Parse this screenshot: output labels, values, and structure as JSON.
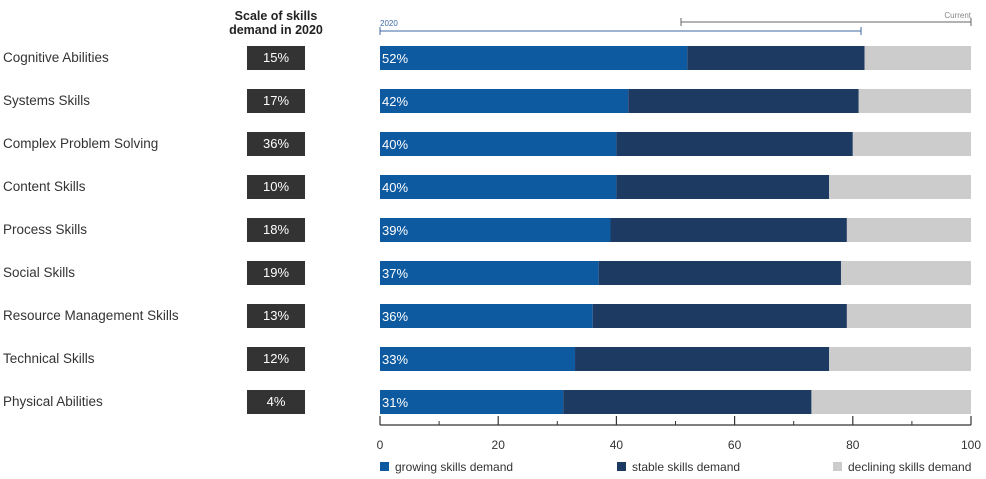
{
  "column_header": "Scale of skills demand in 2020",
  "range_labels": {
    "start": "2020",
    "end": "Current"
  },
  "colors": {
    "growing": "#0e5aa0",
    "stable": "#1d3a63",
    "declining": "#cccccc",
    "box": "#333333"
  },
  "chart_data": {
    "type": "bar",
    "orientation": "horizontal",
    "stacked": true,
    "categories": [
      "Cognitive Abilities",
      "Systems Skills",
      "Complex Problem Solving",
      "Content Skills",
      "Process Skills",
      "Social Skills",
      "Resource Management Skills",
      "Technical Skills",
      "Physical Abilities"
    ],
    "scale_2020": [
      "15%",
      "17%",
      "36%",
      "10%",
      "18%",
      "19%",
      "13%",
      "12%",
      "4%"
    ],
    "series": [
      {
        "name": "growing skills demand",
        "values": [
          52,
          42,
          40,
          40,
          39,
          37,
          36,
          33,
          31
        ]
      },
      {
        "name": "stable skills demand",
        "values": [
          30,
          39,
          40,
          36,
          40,
          41,
          43,
          43,
          42
        ]
      },
      {
        "name": "declining skills demand",
        "values": [
          18,
          19,
          20,
          24,
          21,
          22,
          21,
          24,
          27
        ]
      }
    ],
    "data_labels": [
      "52%",
      "42%",
      "40%",
      "40%",
      "39%",
      "37%",
      "36%",
      "33%",
      "31%"
    ],
    "xlim": [
      0,
      100
    ],
    "xticks": [
      0,
      20,
      40,
      60,
      80,
      100
    ],
    "xtick_labels": [
      "0",
      "20",
      "40",
      "60",
      "80",
      "100"
    ],
    "legend_placement": "bottom",
    "grid": false
  }
}
